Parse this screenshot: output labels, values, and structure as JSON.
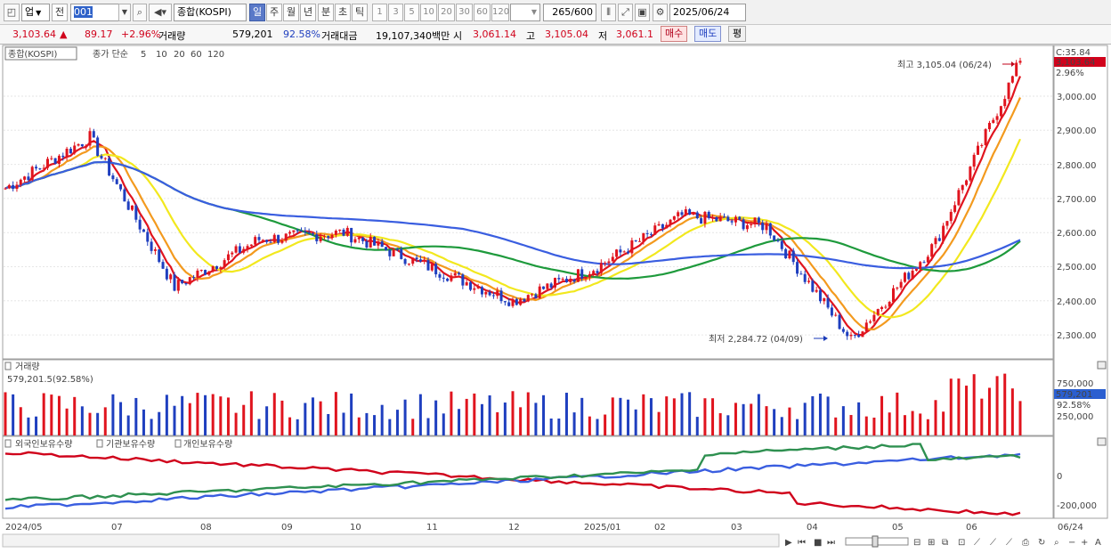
{
  "toolbar": {
    "market_select": "업",
    "prev_button": "전",
    "code_value": "001",
    "index_name": "종합(KOSPI)",
    "period_tabs": [
      "일",
      "주",
      "월",
      "년",
      "분",
      "초",
      "틱"
    ],
    "active_tab": "일",
    "interval_buttons": [
      "1",
      "3",
      "5",
      "10",
      "20",
      "30",
      "60",
      "120"
    ],
    "count_value": "265",
    "count_total": "/600",
    "date_value": "2025/06/24"
  },
  "infobar": {
    "price": "3,103.64",
    "change_arrow": "▲",
    "change": "89.17",
    "change_pct": "+2.96%",
    "volume_label": "거래량",
    "volume": "579,201",
    "volume_ratio": "92.58%",
    "amount_label": "거래대금",
    "amount": "19,107,340백만",
    "open_label": "시",
    "open": "3,061.14",
    "high_label": "고",
    "high": "3,105.04",
    "low_label": "저",
    "low": "3,061.1",
    "buy_button": "매수",
    "sell_button": "매도",
    "eval_button": "평"
  },
  "price_panel": {
    "legend_name": "종합(KOSPI)",
    "legend_ma_label": "종가 단순",
    "ma_periods": [
      "5",
      "10",
      "20",
      "60",
      "120"
    ],
    "ma_colors": [
      "#e0141e",
      "#f39a1e",
      "#f2e81e",
      "#1e9a3c",
      "#3a5ee0"
    ],
    "high_marker": "최고 3,105.04 (06/24)",
    "low_marker": "최저 2,284.72 (04/09)",
    "right_badge_top": "C:35.84",
    "right_badge_price": "3,103.64",
    "right_badge_pct": "2.96%",
    "y_ticks": [
      "3,000.00",
      "2,900.00",
      "2,800.00",
      "2,700.00",
      "2,600.00",
      "2,500.00",
      "2,400.00",
      "2,300.00"
    ]
  },
  "volume_panel": {
    "title": "거래량",
    "current_label": "579,201.5(92.58%)",
    "y_ticks": [
      "750,000",
      "500,000",
      "250,000"
    ],
    "badge_value": "579,201",
    "badge_pct": "92.58%"
  },
  "holdings_panel": {
    "legend": [
      "외국인보유수량",
      "기관보유수량",
      "개인보유수량"
    ],
    "legend_colors": [
      "#d0021b",
      "#3a5ee0",
      "#2e9050"
    ],
    "y_ticks": [
      "0",
      "-200,000"
    ]
  },
  "x_axis": {
    "labels": [
      "2024/05",
      "07",
      "08",
      "09",
      "10",
      "11",
      "12",
      "2025/01",
      "02",
      "03",
      "04",
      "05",
      "06"
    ],
    "right_label": "06/24"
  },
  "chart_data": {
    "type": "candlestick",
    "title": "종합(KOSPI)",
    "x_range": [
      "2024/05",
      "2025/06/24"
    ],
    "ylim": [
      2250,
      3150
    ],
    "key_points": [
      {
        "date": "2024/05",
        "close": 2730
      },
      {
        "date": "2024/07",
        "close": 2880
      },
      {
        "date": "2024/08",
        "close": 2440
      },
      {
        "date": "2024/09",
        "close": 2580
      },
      {
        "date": "2024/10",
        "close": 2600
      },
      {
        "date": "2024/11",
        "close": 2500
      },
      {
        "date": "2024/12",
        "close": 2400
      },
      {
        "date": "2025/01",
        "close": 2500
      },
      {
        "date": "2025/02",
        "close": 2650
      },
      {
        "date": "2025/03",
        "close": 2620
      },
      {
        "date": "2025/04/09",
        "close": 2284.72
      },
      {
        "date": "2025/05",
        "close": 2570
      },
      {
        "date": "2025/06/24",
        "close": 3103.64
      }
    ]
  }
}
